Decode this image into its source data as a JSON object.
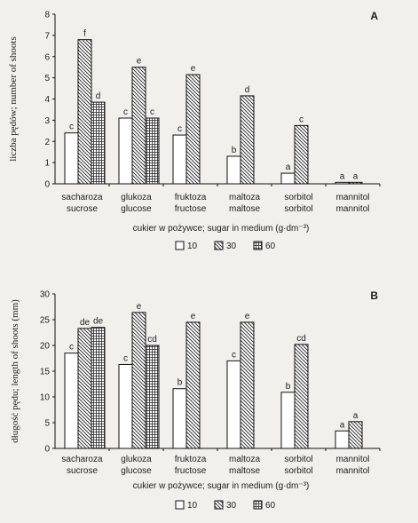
{
  "chart_data": [
    {
      "type": "bar",
      "panel_label": "A",
      "ylabel": "liczba pędów; number of shoots",
      "xlabel": "cukier w pożywce; sugar in medium (g·dm⁻³)",
      "ylim": [
        0,
        8
      ],
      "yticks": [
        0,
        1,
        2,
        3,
        4,
        5,
        6,
        7,
        8
      ],
      "categories": [
        [
          "sacharoza",
          "sucrose"
        ],
        [
          "glukoza",
          "glucose"
        ],
        [
          "fruktoza",
          "fructose"
        ],
        [
          "maltoza",
          "maltose"
        ],
        [
          "sorbitol",
          "sorbitol"
        ],
        [
          "mannitol",
          "mannitol"
        ]
      ],
      "series": [
        {
          "name": "10",
          "pattern": "white",
          "values": [
            2.4,
            3.1,
            2.3,
            1.3,
            0.5,
            0.07
          ],
          "letters": [
            "c",
            "c",
            "c",
            "b",
            "a",
            "a"
          ]
        },
        {
          "name": "30",
          "pattern": "hatch",
          "values": [
            6.8,
            5.5,
            5.15,
            4.15,
            2.75,
            0.07
          ],
          "letters": [
            "f",
            "e",
            "e",
            "d",
            "c",
            "a"
          ]
        },
        {
          "name": "60",
          "pattern": "grid",
          "values": [
            3.85,
            3.1,
            null,
            null,
            null,
            null
          ],
          "letters": [
            "d",
            "c",
            "",
            "",
            "",
            ""
          ]
        }
      ],
      "legend": [
        "10",
        "30",
        "60"
      ],
      "legend_placement": "bottom-center"
    },
    {
      "type": "bar",
      "panel_label": "B",
      "ylabel": "długość pędu; length of shoots (mm)",
      "xlabel": "cukier w pożywce; sugar in medium (g·dm⁻³)",
      "ylim": [
        0,
        30
      ],
      "yticks": [
        0,
        5,
        10,
        15,
        20,
        25,
        30
      ],
      "categories": [
        [
          "sacharoza",
          "sucrose"
        ],
        [
          "glukoza",
          "glucose"
        ],
        [
          "fruktoza",
          "fructose"
        ],
        [
          "maltoza",
          "maltose"
        ],
        [
          "sorbitol",
          "sorbitol"
        ],
        [
          "mannitol",
          "mannitol"
        ]
      ],
      "series": [
        {
          "name": "10",
          "pattern": "white",
          "values": [
            18.5,
            16.3,
            11.6,
            17.0,
            10.9,
            3.4
          ],
          "letters": [
            "c",
            "c",
            "b",
            "c",
            "b",
            "a"
          ]
        },
        {
          "name": "30",
          "pattern": "hatch",
          "values": [
            23.3,
            26.4,
            24.5,
            24.5,
            20.2,
            5.2
          ],
          "letters": [
            "de",
            "e",
            "e",
            "e",
            "cd",
            "a"
          ]
        },
        {
          "name": "60",
          "pattern": "grid",
          "values": [
            23.5,
            20.0,
            null,
            null,
            null,
            null
          ],
          "letters": [
            "de",
            "cd",
            "",
            "",
            "",
            ""
          ]
        }
      ],
      "legend": [
        "10",
        "30",
        "60"
      ],
      "legend_placement": "bottom-center"
    }
  ]
}
